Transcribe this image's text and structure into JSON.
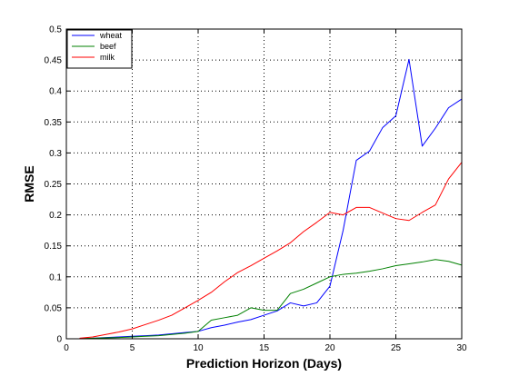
{
  "chart_data": {
    "type": "line",
    "title": "",
    "xlabel": "Prediction Horizon (Days)",
    "ylabel": "RMSE",
    "xlim": [
      0,
      30
    ],
    "ylim": [
      0,
      0.5
    ],
    "x_ticks": [
      0,
      5,
      10,
      15,
      20,
      25,
      30
    ],
    "y_ticks": [
      0,
      0.05,
      0.1,
      0.15,
      0.2,
      0.25,
      0.3,
      0.35,
      0.4,
      0.45,
      0.5
    ],
    "x_tick_labels": [
      "0",
      "5",
      "10",
      "15",
      "20",
      "25",
      "30"
    ],
    "y_tick_labels": [
      "0",
      "0.05",
      "0.1",
      "0.15",
      "0.2",
      "0.25",
      "0.3",
      "0.35",
      "0.4",
      "0.45",
      "0.5"
    ],
    "grid": true,
    "legend_position": "top-left",
    "x": [
      1,
      2,
      3,
      4,
      5,
      6,
      7,
      8,
      9,
      10,
      11,
      12,
      13,
      14,
      15,
      16,
      17,
      18,
      19,
      20,
      21,
      22,
      23,
      24,
      25,
      26,
      27,
      28,
      29,
      30
    ],
    "series": [
      {
        "name": "wheat",
        "color": "#0000ff",
        "values": [
          0.0005,
          0.001,
          0.002,
          0.003,
          0.004,
          0.005,
          0.006,
          0.008,
          0.01,
          0.012,
          0.018,
          0.022,
          0.027,
          0.031,
          0.038,
          0.045,
          0.058,
          0.053,
          0.058,
          0.085,
          0.175,
          0.288,
          0.303,
          0.341,
          0.36,
          0.451,
          0.311,
          0.34,
          0.373,
          0.387
        ]
      },
      {
        "name": "beef",
        "color": "#008000",
        "values": [
          0.0005,
          0.001,
          0.0015,
          0.002,
          0.003,
          0.004,
          0.005,
          0.007,
          0.009,
          0.012,
          0.03,
          0.034,
          0.038,
          0.05,
          0.046,
          0.046,
          0.073,
          0.08,
          0.09,
          0.1,
          0.104,
          0.106,
          0.109,
          0.113,
          0.118,
          0.121,
          0.124,
          0.128,
          0.125,
          0.119
        ]
      },
      {
        "name": "milk",
        "color": "#ff0000",
        "values": [
          0.001,
          0.003,
          0.007,
          0.011,
          0.016,
          0.023,
          0.03,
          0.038,
          0.05,
          0.062,
          0.075,
          0.092,
          0.107,
          0.118,
          0.13,
          0.142,
          0.155,
          0.173,
          0.188,
          0.204,
          0.2,
          0.212,
          0.212,
          0.203,
          0.194,
          0.191,
          0.204,
          0.216,
          0.258,
          0.285
        ]
      }
    ]
  }
}
